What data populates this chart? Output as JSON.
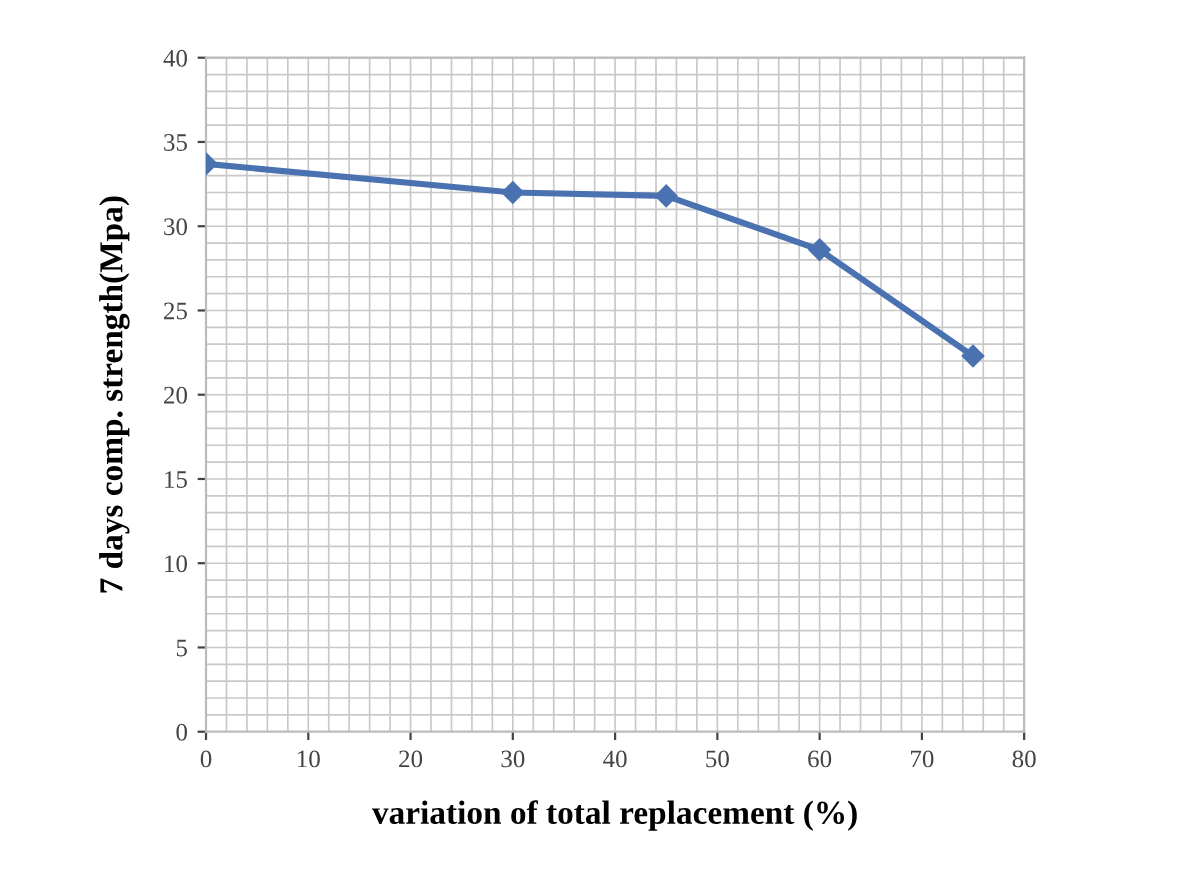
{
  "chart_data": {
    "type": "line",
    "xlabel": "variation of total replacement (%)",
    "ylabel": "7 days comp. strength(Mpa)",
    "x": [
      0,
      30,
      45,
      60,
      75
    ],
    "series": [
      {
        "color": "#4a72b0",
        "values": [
          33.7,
          32.0,
          31.8,
          28.6,
          22.3
        ]
      }
    ],
    "xlim": [
      0,
      80
    ],
    "xticks": [
      0,
      10,
      20,
      30,
      40,
      50,
      60,
      70,
      80
    ],
    "ylim": [
      0,
      40
    ],
    "yticks": [
      0,
      5,
      10,
      15,
      20,
      25,
      30,
      35,
      40
    ],
    "grid": true,
    "marker": "diamond",
    "line_style": "solid"
  }
}
